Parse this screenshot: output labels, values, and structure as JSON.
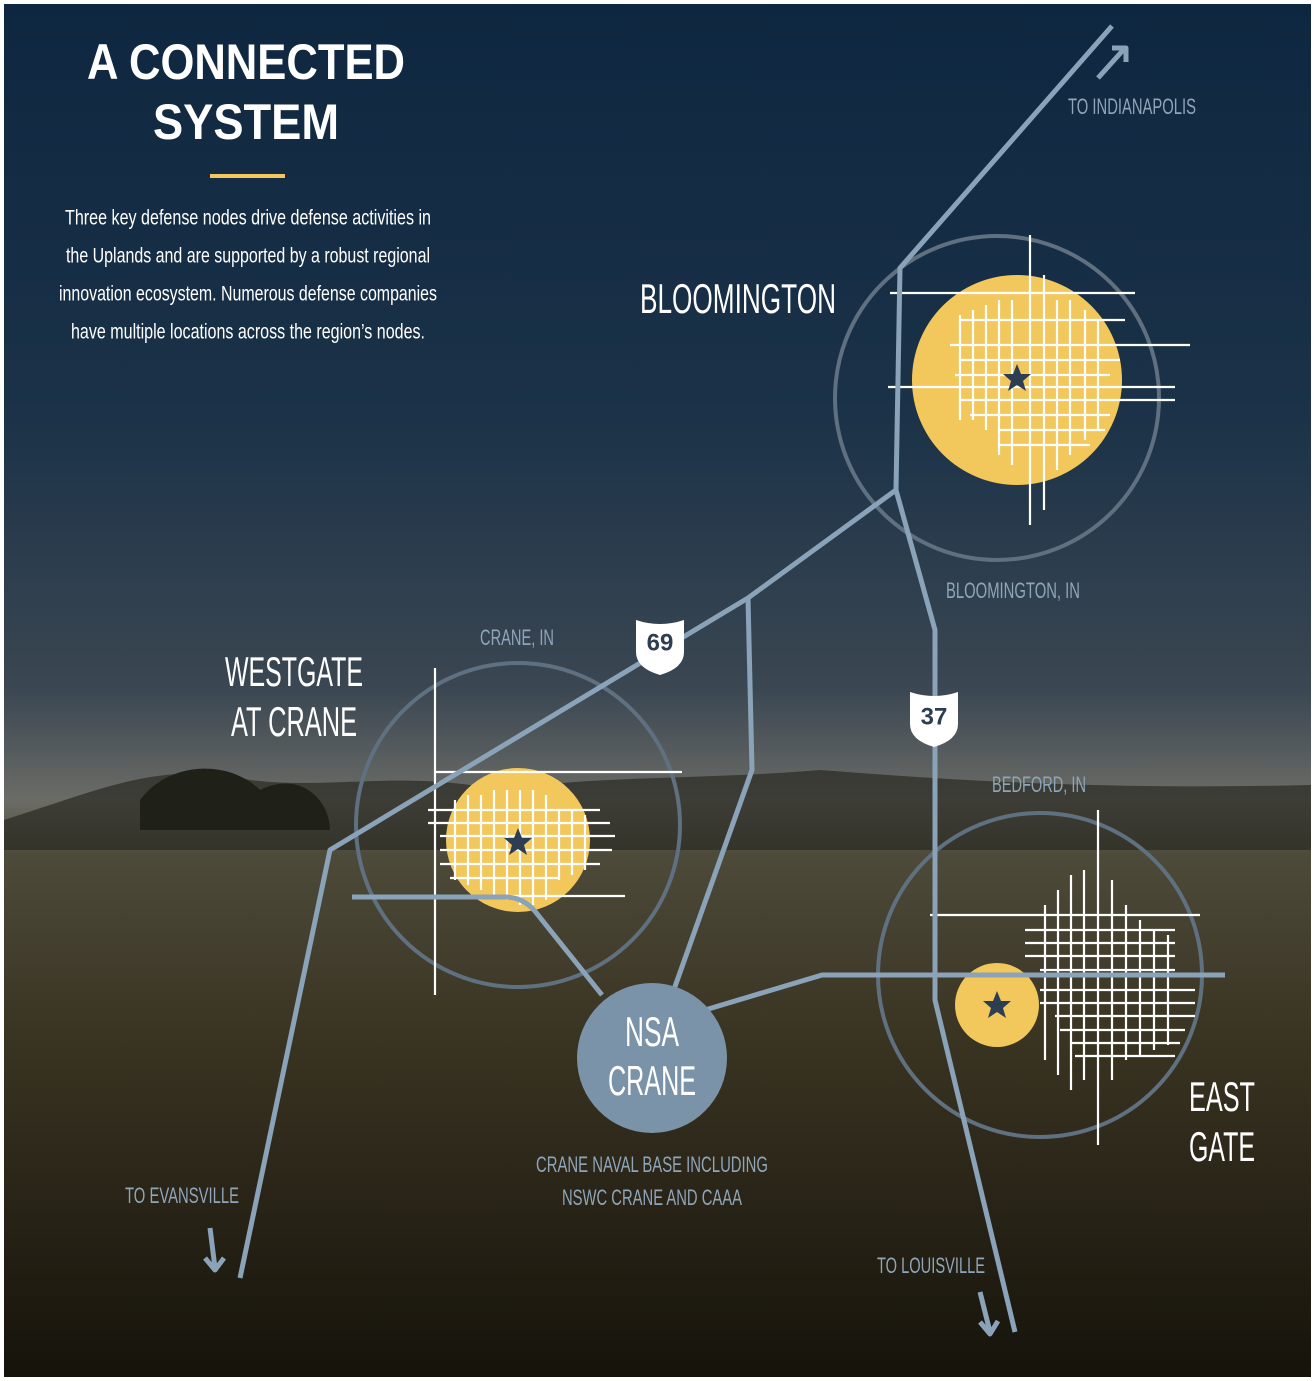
{
  "header": {
    "title": [
      "A CONNECTED",
      "SYSTEM"
    ],
    "description": [
      "Three key defense nodes drive defense activities in",
      "the Uplands and are supported by a robust regional",
      "innovation ecosystem. Numerous defense companies",
      "have multiple locations across the region’s nodes."
    ]
  },
  "nodes": [
    {
      "name": [
        "BLOOMINGTON"
      ],
      "location": "BLOOMINGTON, IN"
    },
    {
      "name": [
        "WESTGATE",
        "AT CRANE"
      ],
      "location": "CRANE, IN"
    },
    {
      "name": [
        "EAST",
        "GATE"
      ],
      "location": "BEDFORD, IN"
    },
    {
      "name": [
        "NSA",
        "CRANE"
      ],
      "description": [
        "CRANE NAVAL BASE INCLUDING",
        "NSWC CRANE AND CAAA"
      ]
    }
  ],
  "highways": [
    "69",
    "37"
  ],
  "labels": {
    "to_indianapolis": "TO INDIANAPOLIS",
    "to_evansville": "TO EVANSVILLE",
    "to_louisville": "TO LOUISVILLE"
  }
}
